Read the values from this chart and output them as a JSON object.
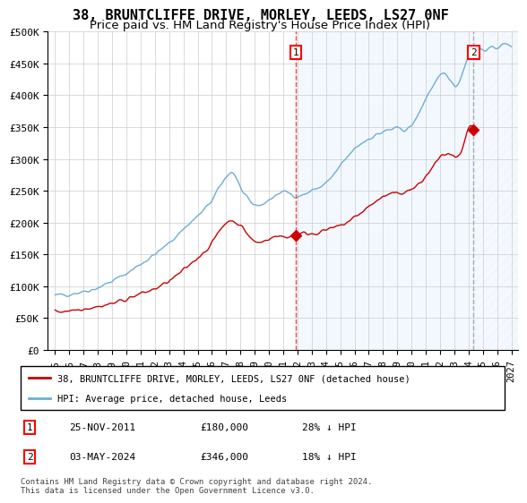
{
  "title": "38, BRUNTCLIFFE DRIVE, MORLEY, LEEDS, LS27 0NF",
  "subtitle": "Price paid vs. HM Land Registry's House Price Index (HPI)",
  "ylim": [
    0,
    500000
  ],
  "yticks": [
    0,
    50000,
    100000,
    150000,
    200000,
    250000,
    300000,
    350000,
    400000,
    450000,
    500000
  ],
  "ytick_labels": [
    "£0",
    "£50K",
    "£100K",
    "£150K",
    "£200K",
    "£250K",
    "£300K",
    "£350K",
    "£400K",
    "£450K",
    "£500K"
  ],
  "xlim_start": 1994.5,
  "xlim_end": 2027.5,
  "xticks": [
    1995,
    1996,
    1997,
    1998,
    1999,
    2000,
    2001,
    2002,
    2003,
    2004,
    2005,
    2006,
    2007,
    2008,
    2009,
    2010,
    2011,
    2012,
    2013,
    2014,
    2015,
    2016,
    2017,
    2018,
    2019,
    2020,
    2021,
    2022,
    2023,
    2024,
    2025,
    2026,
    2027
  ],
  "hpi_color": "#6baed6",
  "price_color": "#cc0000",
  "background_color": "#ffffff",
  "plot_bg_color": "#ffffff",
  "shade_color": "#cce0ff",
  "grid_color": "#cccccc",
  "sale1_date": 2011.9,
  "sale1_price": 180000,
  "sale2_date": 2024.35,
  "sale2_price": 346000,
  "vline1_color": "#ff4444",
  "vline2_color": "#aaaaaa",
  "legend_line1": "38, BRUNTCLIFFE DRIVE, MORLEY, LEEDS, LS27 0NF (detached house)",
  "legend_line2": "HPI: Average price, detached house, Leeds",
  "table_row1": [
    "1",
    "25-NOV-2011",
    "£180,000",
    "28% ↓ HPI"
  ],
  "table_row2": [
    "2",
    "03-MAY-2024",
    "£346,000",
    "18% ↓ HPI"
  ],
  "footnote": "Contains HM Land Registry data © Crown copyright and database right 2024.\nThis data is licensed under the Open Government Licence v3.0.",
  "title_fontsize": 11,
  "subtitle_fontsize": 9.5,
  "tick_fontsize": 8,
  "hatch_pattern": "///"
}
